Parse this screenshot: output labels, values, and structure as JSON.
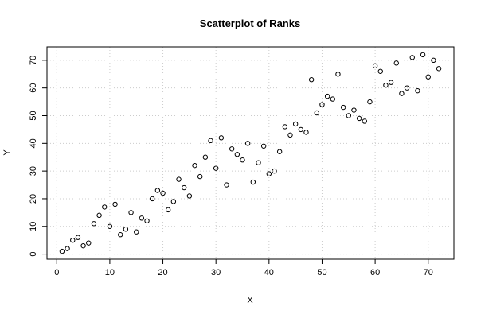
{
  "chart_data": {
    "type": "scatter",
    "title": "Scatterplot of Ranks",
    "x_label": "X",
    "y_label": "Y",
    "x": [
      1,
      2,
      3,
      4,
      5,
      6,
      7,
      8,
      9,
      10,
      11,
      12,
      13,
      14,
      15,
      16,
      17,
      18,
      19,
      20,
      21,
      22,
      23,
      24,
      25,
      26,
      27,
      28,
      29,
      30,
      31,
      32,
      33,
      34,
      35,
      36,
      37,
      38,
      39,
      40,
      41,
      42,
      43,
      44,
      45,
      46,
      47,
      48,
      49,
      50,
      51,
      52,
      53,
      54,
      55,
      56,
      57,
      58,
      59,
      60,
      61,
      62,
      63,
      64,
      65,
      66,
      67,
      68,
      69,
      70,
      71,
      72
    ],
    "y": [
      1,
      2,
      5,
      6,
      3,
      4,
      11,
      14,
      17,
      10,
      18,
      7,
      9,
      15,
      8,
      13,
      12,
      20,
      23,
      22,
      16,
      19,
      27,
      24,
      21,
      32,
      28,
      35,
      41,
      31,
      42,
      25,
      38,
      36,
      34,
      40,
      26,
      33,
      39,
      29,
      30,
      37,
      46,
      43,
      47,
      45,
      44,
      63,
      51,
      54,
      57,
      56,
      65,
      53,
      50,
      52,
      49,
      48,
      55,
      68,
      66,
      61,
      62,
      69,
      58,
      60,
      71,
      59,
      72,
      64,
      70,
      67
    ],
    "color": "#000000",
    "xlim": [
      -1.84,
      74.84
    ],
    "ylim": [
      -1.84,
      74.84
    ],
    "xticks": [
      0,
      10,
      20,
      30,
      40,
      50,
      60,
      70
    ],
    "yticks": [
      0,
      10,
      20,
      30,
      40,
      50,
      60,
      70
    ],
    "grid": true
  }
}
